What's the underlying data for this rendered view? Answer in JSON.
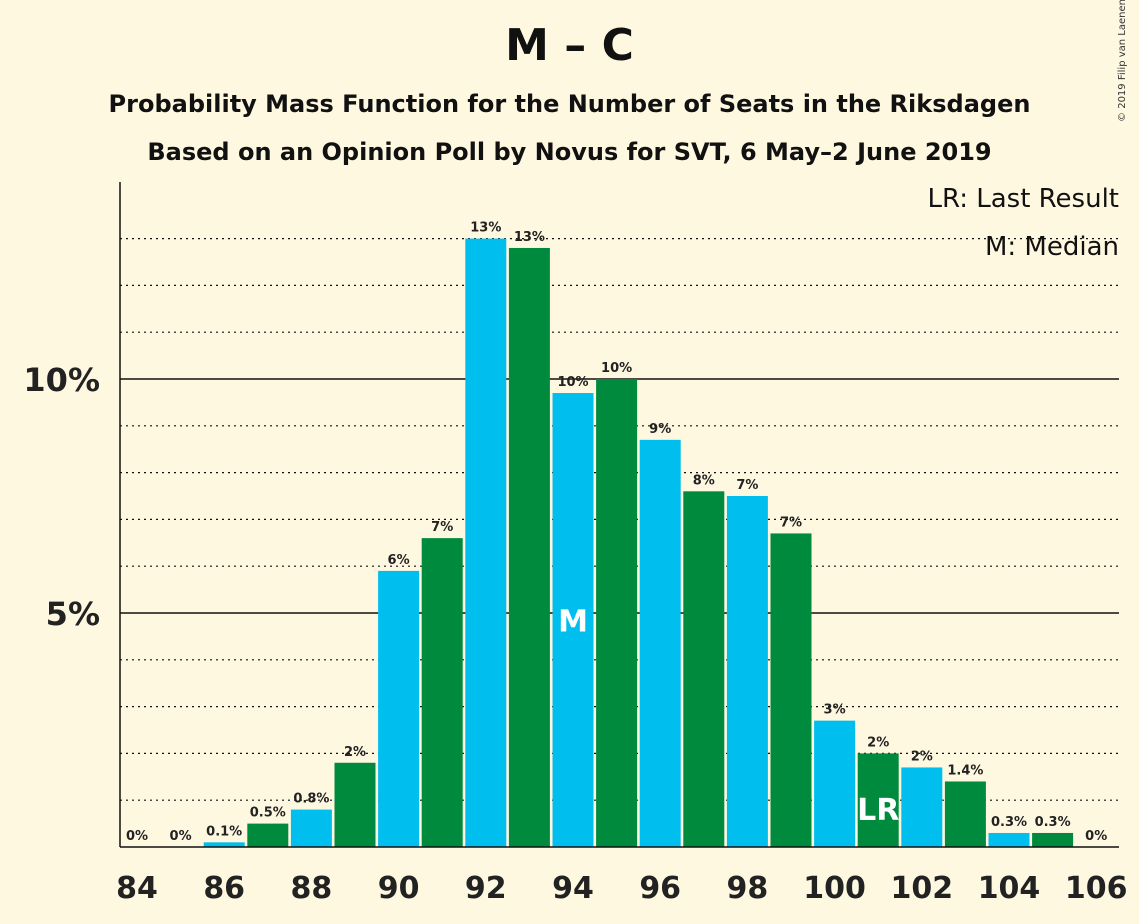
{
  "chart_data": {
    "type": "bar",
    "title": "M – C",
    "subtitle": "Probability Mass Function for the Number of Seats in the Riksdagen",
    "subtitle2": "Based on an Opinion Poll by Novus for SVT, 6 May–2 June 2019",
    "copyright": "© 2019 Filip van Laenen",
    "legend": {
      "lr": "LR: Last Result",
      "m": "M: Median",
      "placement": "top-right"
    },
    "x": [
      84,
      85,
      86,
      87,
      88,
      89,
      90,
      91,
      92,
      93,
      94,
      95,
      96,
      97,
      98,
      99,
      100,
      101,
      102,
      103,
      104,
      105,
      106
    ],
    "values": [
      0,
      0,
      0.1,
      0.5,
      0.8,
      1.8,
      5.9,
      6.6,
      13.0,
      12.8,
      9.7,
      10.0,
      8.7,
      7.6,
      7.5,
      6.7,
      2.7,
      2.0,
      1.7,
      1.4,
      0.3,
      0.3,
      0
    ],
    "labels": [
      "0%",
      "0%",
      "0.1%",
      "0.5%",
      "0.8%",
      "2%",
      "6%",
      "7%",
      "13%",
      "13%",
      "10%",
      "10%",
      "9%",
      "8%",
      "7%",
      "7%",
      "3%",
      "2%",
      "2%",
      "1.4%",
      "0.3%",
      "0.3%",
      "0%"
    ],
    "x_ticks": [
      "84",
      "86",
      "88",
      "90",
      "92",
      "94",
      "96",
      "98",
      "100",
      "102",
      "104",
      "106"
    ],
    "y_ticks": [
      {
        "value": 5,
        "label": "5%"
      },
      {
        "value": 10,
        "label": "10%"
      }
    ],
    "ylim": [
      0,
      14
    ],
    "median_seat": 94,
    "median_marker": "M",
    "last_result_seat": 101,
    "last_result_marker": "LR",
    "grid": "dotted every 1%, solid at 5% and 10%",
    "colors": {
      "even": "#00BFEF",
      "odd": "#008A3E",
      "background": "#FFF8E1"
    }
  }
}
